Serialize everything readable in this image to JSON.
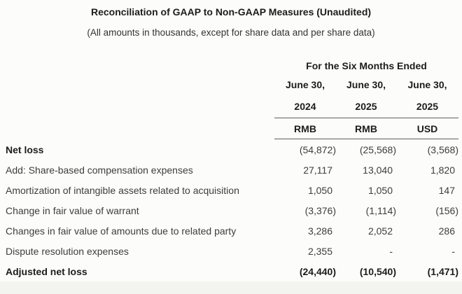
{
  "title": "Reconciliation of GAAP to Non-GAAP Measures (Unaudited)",
  "subtitle": "(All amounts in thousands, except for share data and per share data)",
  "table": {
    "period_header": "For the Six Months Ended",
    "columns": [
      {
        "date_line1": "June 30,",
        "date_line2": "2024",
        "currency": "RMB"
      },
      {
        "date_line1": "June 30,",
        "date_line2": "2025",
        "currency": "RMB"
      },
      {
        "date_line1": "June 30,",
        "date_line2": "2025",
        "currency": "USD"
      }
    ],
    "rows": [
      {
        "label": "Net loss",
        "values": [
          "(54,872)",
          "(25,568)",
          "(3,568)"
        ]
      },
      {
        "label": "Add: Share-based compensation expenses",
        "values": [
          "27,117",
          "13,040",
          "1,820"
        ]
      },
      {
        "label": "Amortization of intangible assets related to acquisition",
        "values": [
          "1,050",
          "1,050",
          "147"
        ]
      },
      {
        "label": "Change in fair value of warrant",
        "values": [
          "(3,376)",
          "(1,114)",
          "(156)"
        ]
      },
      {
        "label": "Changes in fair value of amounts due to related party",
        "values": [
          "3,286",
          "2,052",
          "286"
        ]
      },
      {
        "label": "Dispute resolution expenses",
        "values": [
          "2,355",
          "-",
          "-"
        ]
      },
      {
        "label": "Adjusted net loss",
        "values": [
          "(24,440)",
          "(10,540)",
          "(1,471)"
        ]
      }
    ]
  },
  "colors": {
    "background": "#fcfcfb",
    "bottom_strip": "#f3f3f0",
    "body_text": "#3d3d3d",
    "heading_text": "#1c1c1c",
    "rule_line": "#5f5f5f"
  }
}
